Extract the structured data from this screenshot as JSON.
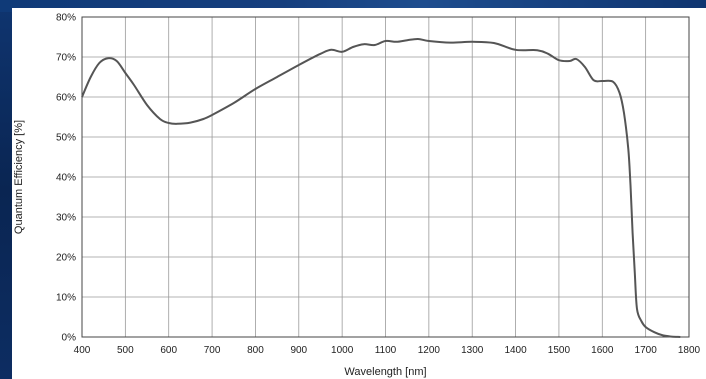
{
  "chart_data": {
    "type": "line",
    "title": "",
    "xlabel": "Wavelength [nm]",
    "ylabel": "Quantum Efficiency [%]",
    "xlim": [
      400,
      1800
    ],
    "ylim": [
      0,
      80
    ],
    "grid": true,
    "legend": "none",
    "x_ticks": [
      "400",
      "500",
      "600",
      "700",
      "800",
      "900",
      "1000",
      "1100",
      "1200",
      "1300",
      "1400",
      "1500",
      "1600",
      "1700",
      "1800"
    ],
    "y_ticks": [
      "0%",
      "10%",
      "20%",
      "30%",
      "40%",
      "50%",
      "60%",
      "70%",
      "80%"
    ],
    "line_color": "#555555",
    "series": [
      {
        "x": [
          400,
          420,
          440,
          460,
          480,
          500,
          520,
          550,
          580,
          600,
          620,
          650,
          680,
          700,
          750,
          800,
          850,
          900,
          950,
          975,
          1000,
          1025,
          1050,
          1075,
          1100,
          1125,
          1150,
          1175,
          1200,
          1250,
          1300,
          1350,
          1400,
          1450,
          1475,
          1500,
          1525,
          1540,
          1560,
          1580,
          1600,
          1625,
          1640,
          1650,
          1660,
          1665,
          1670,
          1675,
          1680,
          1690,
          1700,
          1720,
          1740,
          1760,
          1780
        ],
        "y": [
          60,
          65,
          68.5,
          69.7,
          69,
          66,
          63,
          58,
          54.5,
          53.5,
          53.3,
          53.6,
          54.5,
          55.5,
          58.5,
          62,
          65,
          68,
          70.8,
          71.8,
          71.3,
          72.5,
          73.2,
          73,
          74,
          73.8,
          74.2,
          74.5,
          74,
          73.6,
          73.8,
          73.5,
          71.8,
          71.7,
          70.8,
          69.2,
          69,
          69.5,
          67.5,
          64.2,
          64,
          63.8,
          61,
          56,
          47,
          38,
          26,
          16,
          7,
          4,
          2.5,
          1.2,
          0.4,
          0.1,
          0
        ]
      }
    ]
  }
}
